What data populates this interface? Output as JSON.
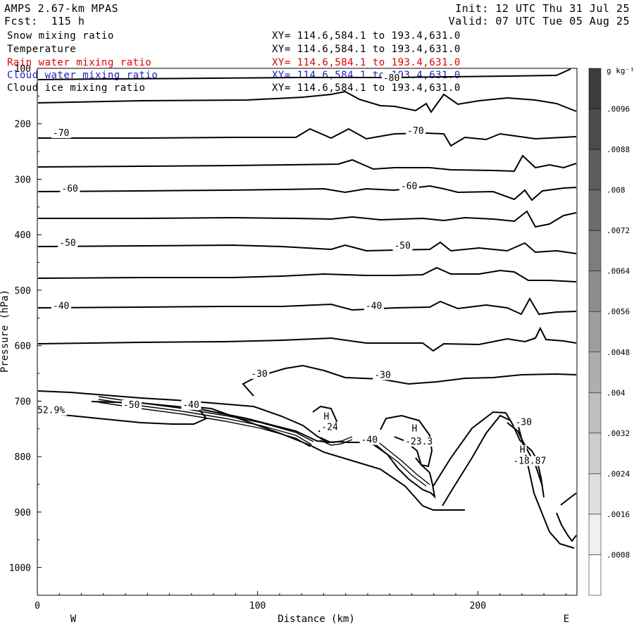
{
  "header": {
    "model": "AMPS 2.67-km MPAS",
    "forecast": "Fcst:  115 h",
    "init": "Init: 12 UTC Thu 31 Jul 25",
    "valid": "Valid: 07 UTC Tue 05 Aug 25"
  },
  "fields": [
    {
      "name": "Snow mixing ratio",
      "xy": "XY= 114.6,584.1 to 193.4,631.0",
      "color": "#000000"
    },
    {
      "name": "Temperature",
      "xy": "XY= 114.6,584.1 to 193.4,631.0",
      "color": "#000000"
    },
    {
      "name": "Rain water mixing ratio",
      "xy": "XY= 114.6,584.1 to 193.4,631.0",
      "color": "#e00000"
    },
    {
      "name": "Cloud water mixing ratio",
      "xy": "XY= 114.6,584.1 to 193.4,631.0",
      "color": "#2020c0"
    },
    {
      "name": "Cloud ice mixing ratio",
      "xy": "XY= 114.6,584.1 to 193.4,631.0",
      "color": "#000000"
    }
  ],
  "chart_data": {
    "type": "line",
    "xlabel": "Distance (km)",
    "ylabel": "Pressure (hPa)",
    "xlim": [
      0,
      245
    ],
    "ylim": [
      1050,
      100
    ],
    "x_ticks": [
      "0",
      "100",
      "200"
    ],
    "y_ticks": [
      "100",
      "200",
      "300",
      "400",
      "500",
      "600",
      "700",
      "800",
      "900",
      "1000"
    ],
    "left_end_label": "W",
    "right_end_label": "E",
    "colorbar": {
      "unit": "g kg⁻¹",
      "levels": [
        ".0096",
        ".0088",
        ".008",
        ".0072",
        ".0064",
        ".0056",
        ".0048",
        ".004",
        ".0032",
        ".0024",
        ".0016",
        ".0008"
      ]
    },
    "contour_labels": [
      {
        "text": "-80",
        "x": 157,
        "p": 123
      },
      {
        "text": "-70",
        "x": 7,
        "p": 222
      },
      {
        "text": "-70",
        "x": 168,
        "p": 218
      },
      {
        "text": "-60",
        "x": 11,
        "p": 322
      },
      {
        "text": "-60",
        "x": 165,
        "p": 318
      },
      {
        "text": "-50",
        "x": 10,
        "p": 420
      },
      {
        "text": "-50",
        "x": 162,
        "p": 425
      },
      {
        "text": "-40",
        "x": 7,
        "p": 534
      },
      {
        "text": "-40",
        "x": 149,
        "p": 534
      },
      {
        "text": "-30",
        "x": 97,
        "p": 656
      },
      {
        "text": "-30",
        "x": 153,
        "p": 658
      },
      {
        "text": "-50",
        "x": 39,
        "p": 712
      },
      {
        "text": "-40",
        "x": 66,
        "p": 712
      },
      {
        "text": "-40",
        "x": 147,
        "p": 775
      },
      {
        "text": "-30",
        "x": 217,
        "p": 743
      },
      {
        "text": "52.9%",
        "x": 0,
        "p": 722
      },
      {
        "text": "H",
        "x": 130,
        "p": 733
      },
      {
        "text": "-24",
        "x": 129,
        "p": 752
      },
      {
        "text": "H",
        "x": 170,
        "p": 755
      },
      {
        "text": "-23.3",
        "x": 167,
        "p": 778
      },
      {
        "text": "H",
        "x": 219,
        "p": 793
      },
      {
        "text": "-18.87",
        "x": 216,
        "p": 813
      }
    ]
  }
}
